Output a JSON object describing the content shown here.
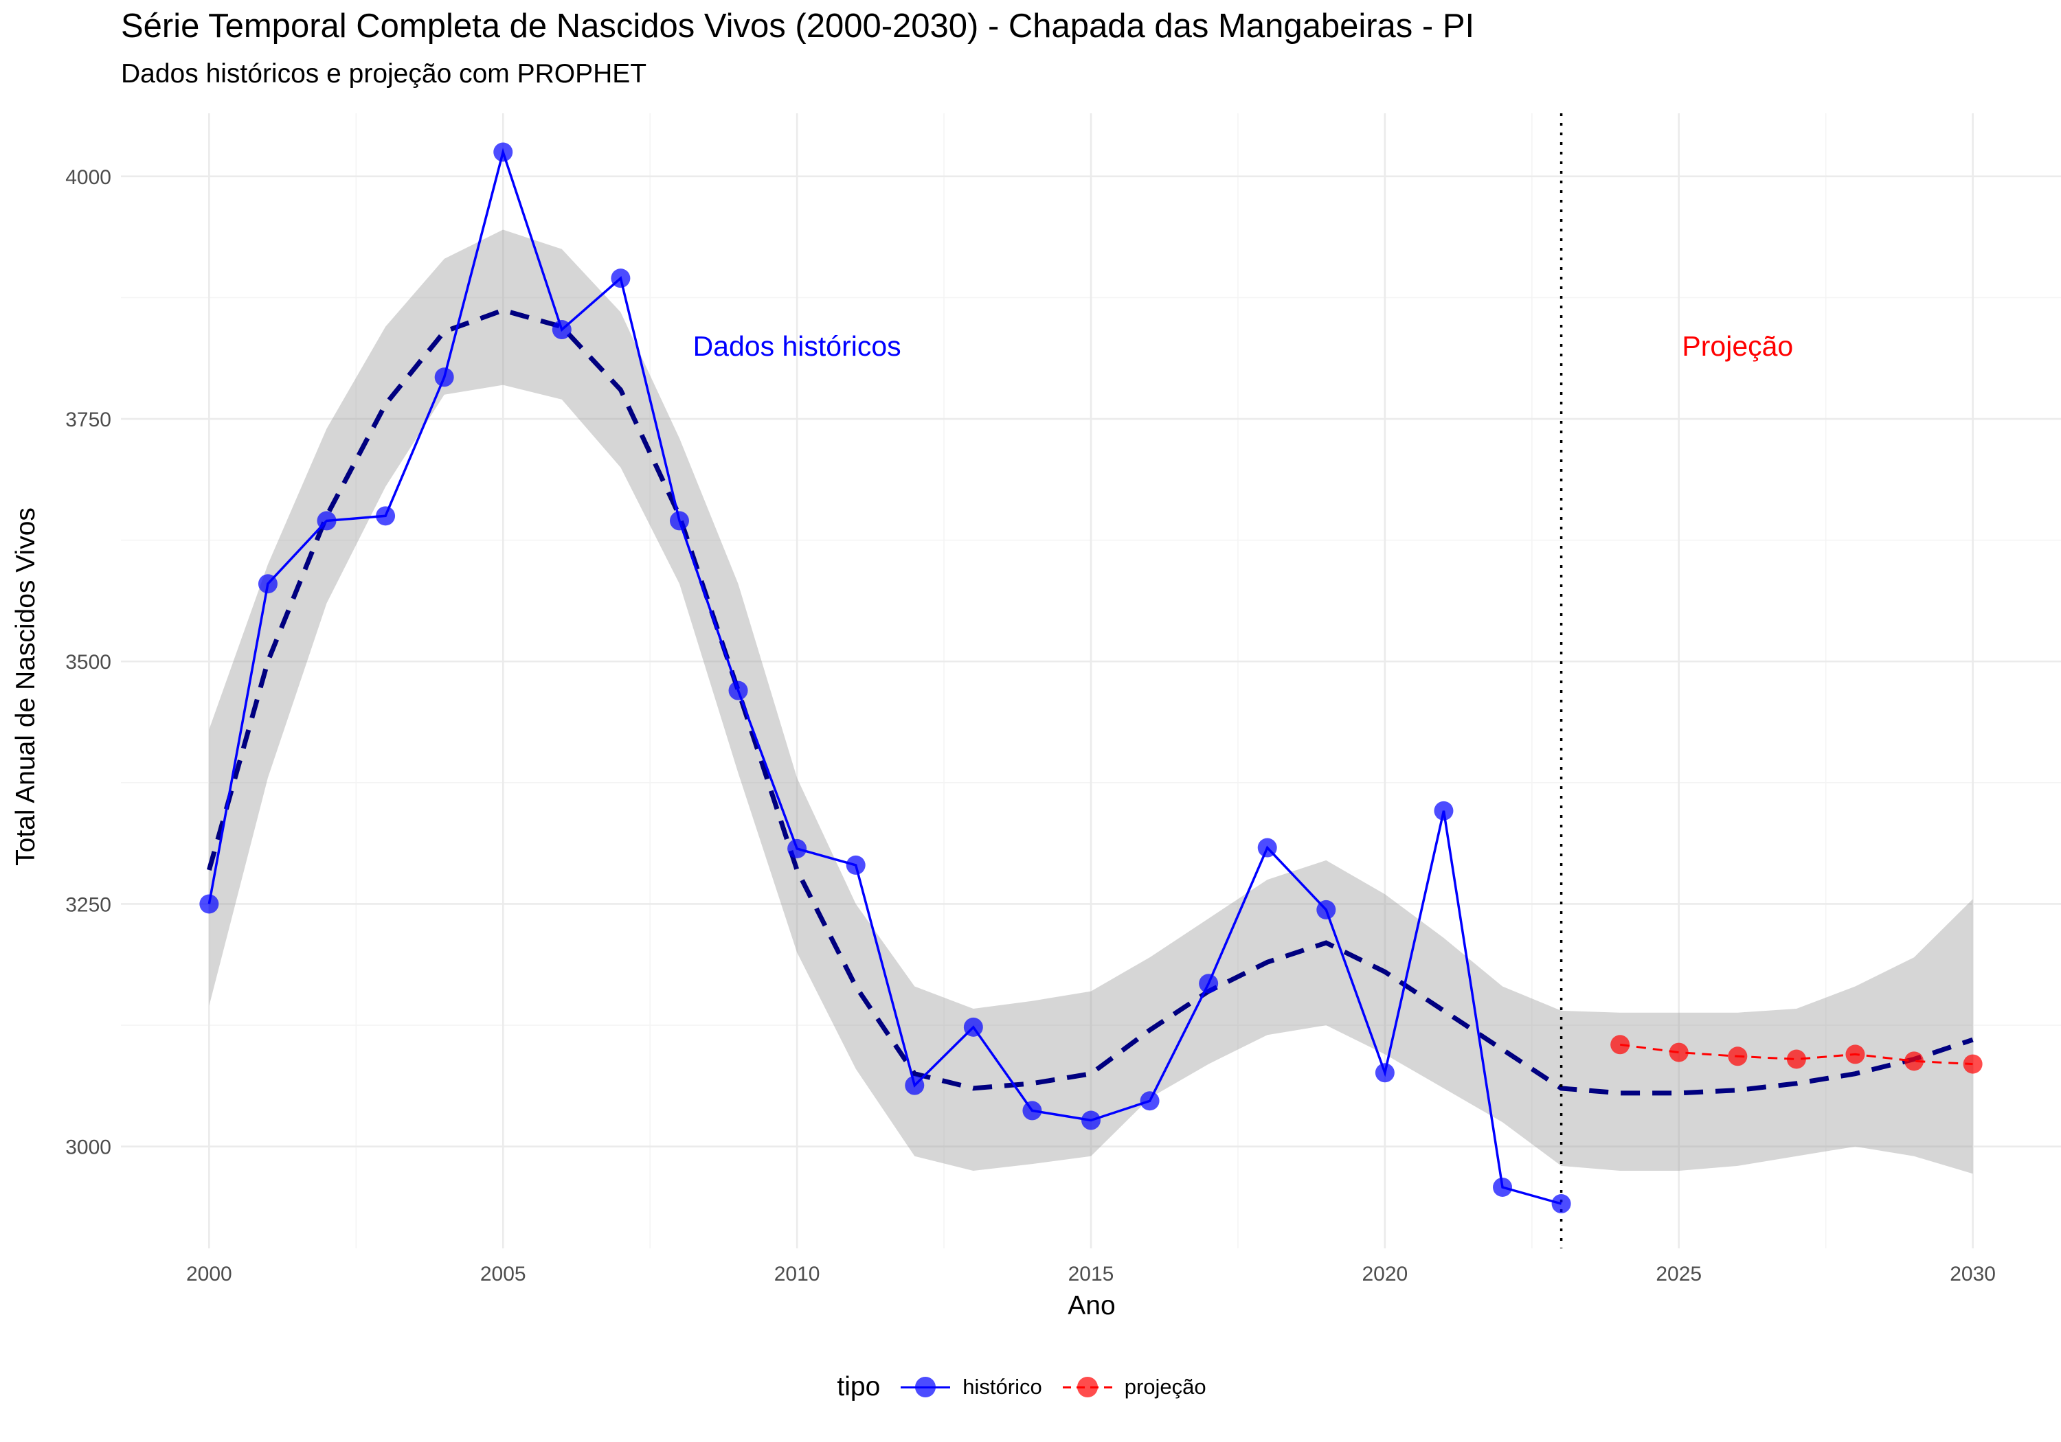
{
  "chart_data": {
    "type": "line",
    "title": "Série Temporal Completa de Nascidos Vivos (2000-2030) -  Chapada das Mangabeiras - PI",
    "subtitle": "Dados históricos e projeção com PROPHET",
    "xlabel": "Ano",
    "ylabel": "Total Anual de Nascidos Vivos",
    "xlim": [
      1998.5,
      2031.5
    ],
    "ylim": [
      2895,
      4065
    ],
    "x_ticks": [
      2000,
      2005,
      2010,
      2015,
      2020,
      2025,
      2030
    ],
    "y_ticks": [
      3000,
      3250,
      3500,
      3750,
      4000
    ],
    "x_tick_labels": [
      "2000",
      "2005",
      "2010",
      "2015",
      "2020",
      "2025",
      "2030"
    ],
    "y_tick_labels": [
      "3000",
      "3250",
      "3500",
      "3750",
      "4000"
    ],
    "grid": true,
    "legend_position": "bottom",
    "legend_title": "tipo",
    "cutoff_year": 2023,
    "annotations": [
      {
        "text": "Dados históricos",
        "x": 2010,
        "y": 3815,
        "color": "#0000FF"
      },
      {
        "text": "Projeção",
        "x": 2026,
        "y": 3815,
        "color": "#FF0000"
      }
    ],
    "series": [
      {
        "name": "histórico",
        "color": "#0000FF",
        "x": [
          2000,
          2001,
          2002,
          2003,
          2004,
          2005,
          2006,
          2007,
          2008,
          2009,
          2010,
          2011,
          2012,
          2013,
          2014,
          2015,
          2016,
          2017,
          2018,
          2019,
          2020,
          2021,
          2022,
          2023
        ],
        "y": [
          3250,
          3580,
          3645,
          3650,
          3793,
          4025,
          3842,
          3895,
          3645,
          3470,
          3307,
          3290,
          3063,
          3123,
          3037,
          3027,
          3047,
          3168,
          3308,
          3244,
          3076,
          3346,
          2958,
          2941
        ]
      },
      {
        "name": "projeção",
        "color": "#FF0000",
        "x": [
          2024,
          2025,
          2026,
          2027,
          2028,
          2029,
          2030
        ],
        "y": [
          3105,
          3097,
          3093,
          3090,
          3095,
          3088,
          3085
        ]
      }
    ],
    "fit": {
      "color": "#000080",
      "x": [
        2000,
        2001,
        2002,
        2003,
        2004,
        2005,
        2006,
        2007,
        2008,
        2009,
        2010,
        2011,
        2012,
        2013,
        2014,
        2015,
        2016,
        2017,
        2018,
        2019,
        2020,
        2021,
        2022,
        2023,
        2024,
        2025,
        2026,
        2027,
        2028,
        2029,
        2030
      ],
      "y": [
        3285,
        3500,
        3650,
        3765,
        3840,
        3862,
        3845,
        3780,
        3650,
        3470,
        3285,
        3165,
        3075,
        3060,
        3065,
        3075,
        3120,
        3160,
        3190,
        3210,
        3180,
        3140,
        3100,
        3060,
        3055,
        3055,
        3058,
        3065,
        3075,
        3090,
        3110
      ],
      "upper": [
        3430,
        3600,
        3740,
        3845,
        3915,
        3945,
        3925,
        3860,
        3730,
        3580,
        3380,
        3250,
        3165,
        3142,
        3150,
        3160,
        3195,
        3235,
        3275,
        3295,
        3260,
        3215,
        3165,
        3140,
        3138,
        3138,
        3138,
        3142,
        3165,
        3195,
        3255
      ],
      "lower": [
        3145,
        3380,
        3560,
        3680,
        3775,
        3785,
        3770,
        3700,
        3580,
        3385,
        3200,
        3080,
        2990,
        2975,
        2982,
        2990,
        3050,
        3085,
        3115,
        3125,
        3095,
        3060,
        3025,
        2980,
        2975,
        2975,
        2980,
        2990,
        3000,
        2990,
        2972
      ]
    }
  }
}
